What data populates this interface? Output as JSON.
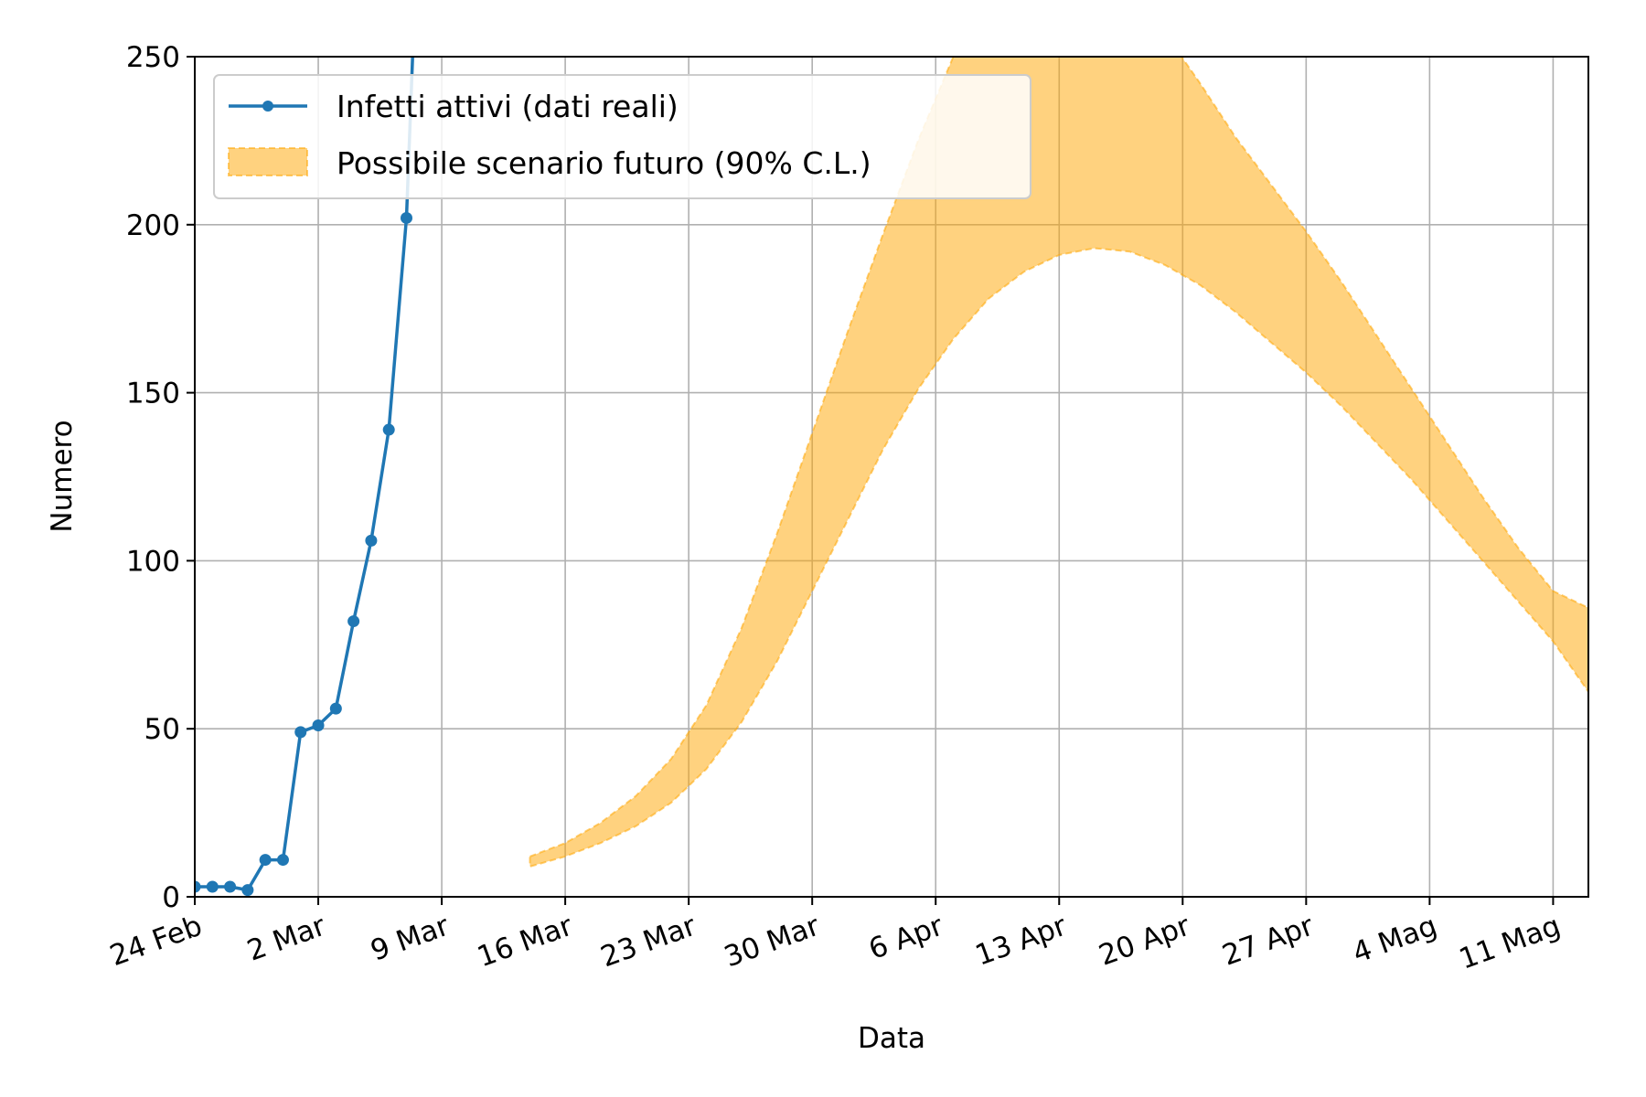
{
  "chart_data": {
    "type": "line",
    "xlabel": "Data",
    "ylabel": "Numero",
    "ylim": [
      0,
      250
    ],
    "xlim": [
      "2020-02-24",
      "2020-05-13"
    ],
    "grid": true,
    "legend_position": "top-left",
    "x_tick_labels": [
      {
        "date": "2020-02-24",
        "label": "24 Feb"
      },
      {
        "date": "2020-03-02",
        "label": "2 Mar"
      },
      {
        "date": "2020-03-09",
        "label": "9 Mar"
      },
      {
        "date": "2020-03-16",
        "label": "16 Mar"
      },
      {
        "date": "2020-03-23",
        "label": "23 Mar"
      },
      {
        "date": "2020-03-30",
        "label": "30 Mar"
      },
      {
        "date": "2020-04-06",
        "label": "6 Apr"
      },
      {
        "date": "2020-04-13",
        "label": "13 Apr"
      },
      {
        "date": "2020-04-20",
        "label": "20 Apr"
      },
      {
        "date": "2020-04-27",
        "label": "27 Apr"
      },
      {
        "date": "2020-05-04",
        "label": "4 Mag"
      },
      {
        "date": "2020-05-11",
        "label": "11 Mag"
      }
    ],
    "y_ticks": [
      0,
      50,
      100,
      150,
      200,
      250
    ],
    "series": [
      {
        "name": "Infetti attivi (dati reali)",
        "kind": "line-markers",
        "color": "#1f77b4",
        "x": [
          "2020-02-24",
          "2020-02-25",
          "2020-02-26",
          "2020-02-27",
          "2020-02-28",
          "2020-02-29",
          "2020-03-01",
          "2020-03-02",
          "2020-03-03",
          "2020-03-04",
          "2020-03-05",
          "2020-03-06",
          "2020-03-07",
          "2020-03-08"
        ],
        "y": [
          3,
          3,
          3,
          2,
          11,
          11,
          49,
          51,
          56,
          82,
          106,
          139,
          202,
          340
        ]
      },
      {
        "name": "Possibile scenario futuro (90% C.L.)",
        "kind": "band",
        "color": "#ffa500",
        "x": [
          "2020-03-14",
          "2020-03-16",
          "2020-03-18",
          "2020-03-20",
          "2020-03-22",
          "2020-03-24",
          "2020-03-26",
          "2020-03-28",
          "2020-03-30",
          "2020-04-01",
          "2020-04-03",
          "2020-04-05",
          "2020-04-07",
          "2020-04-09",
          "2020-04-11",
          "2020-04-13",
          "2020-04-15",
          "2020-04-17",
          "2020-04-19",
          "2020-04-21",
          "2020-04-23",
          "2020-04-25",
          "2020-04-27",
          "2020-04-29",
          "2020-05-01",
          "2020-05-03",
          "2020-05-05",
          "2020-05-07",
          "2020-05-09",
          "2020-05-11",
          "2020-05-13"
        ],
        "lower": [
          9,
          12,
          16,
          21,
          28,
          38,
          52,
          70,
          91,
          112,
          133,
          151,
          166,
          178,
          186,
          191,
          193,
          192,
          188,
          182,
          174,
          165,
          156,
          146,
          135,
          124,
          112,
          100,
          88,
          76,
          61
        ],
        "upper": [
          12,
          16,
          22,
          30,
          41,
          57,
          80,
          108,
          138,
          168,
          197,
          225,
          250,
          265,
          272,
          275,
          275,
          266,
          257,
          242,
          226,
          212,
          198,
          183,
          167,
          151,
          135,
          119,
          104,
          91,
          86
        ]
      }
    ]
  }
}
